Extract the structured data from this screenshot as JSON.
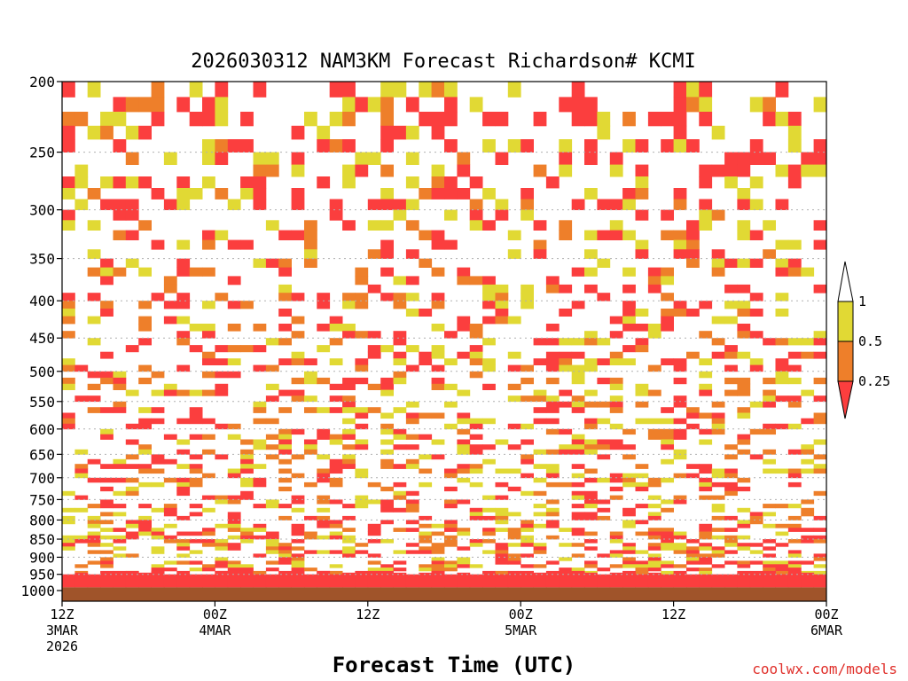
{
  "chart_data": {
    "type": "heatmap",
    "title": "2026030312 NAM3KM Forecast Richardson# KCMI",
    "xlabel": "Forecast Time (UTC)",
    "ylabel": "",
    "credit": "coolwx.com/models",
    "y_ticks": [
      200,
      250,
      300,
      350,
      400,
      450,
      500,
      550,
      600,
      650,
      700,
      750,
      800,
      850,
      900,
      950,
      1000
    ],
    "y_range": [
      200,
      1000
    ],
    "x_ticks": [
      {
        "hour": 0,
        "line1": "12Z",
        "line2": "3MAR",
        "line3": "2026"
      },
      {
        "hour": 12,
        "line1": "00Z",
        "line2": "4MAR",
        "line3": ""
      },
      {
        "hour": 24,
        "line1": "12Z",
        "line2": "",
        "line3": ""
      },
      {
        "hour": 36,
        "line1": "00Z",
        "line2": "5MAR",
        "line3": ""
      },
      {
        "hour": 48,
        "line1": "12Z",
        "line2": "",
        "line3": ""
      },
      {
        "hour": 60,
        "line1": "00Z",
        "line2": "6MAR",
        "line3": ""
      }
    ],
    "x_range_hours": [
      0,
      60
    ],
    "legend": {
      "position": "right",
      "labels": [
        "1",
        "0.5",
        "0.25"
      ],
      "levels": [
        {
          "min": 0.5,
          "max": 1.0,
          "color": "#e1d934"
        },
        {
          "min": 0.25,
          "max": 0.5,
          "color": "#ee7f2a"
        },
        {
          "min": 0.0,
          "max": 0.25,
          "color": "#fb3e3e"
        }
      ]
    },
    "ground_color": "#a0542a",
    "cell_hours": 1,
    "cell_hpa": 10
  }
}
